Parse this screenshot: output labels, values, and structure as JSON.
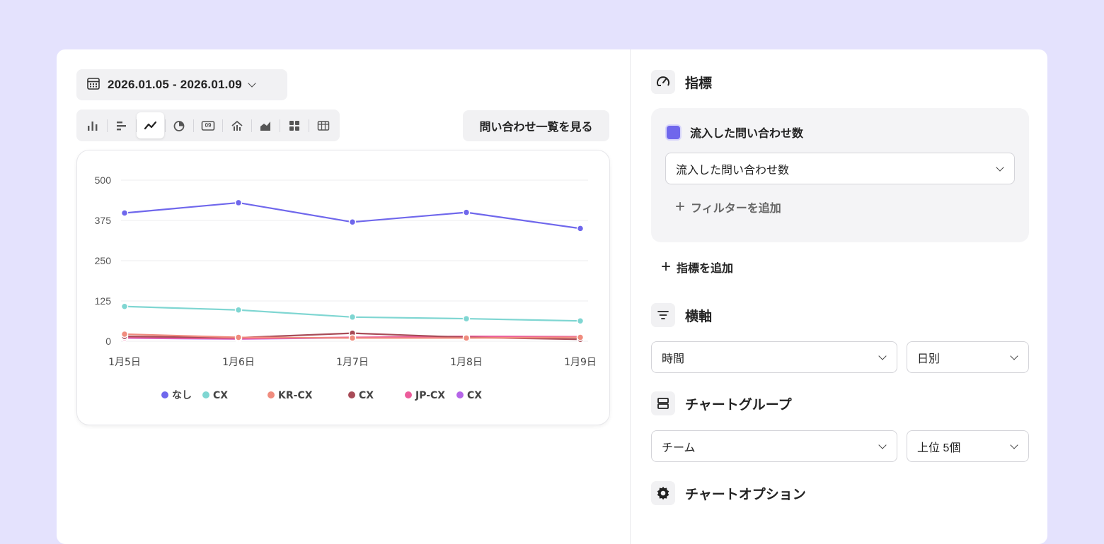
{
  "date_range": {
    "label": "2026.01.05 - 2026.01.09"
  },
  "chart_type_toolbar": {
    "items": [
      "bar-chart",
      "horizontal-bar-chart",
      "line-chart",
      "pie-chart",
      "number",
      "funnel",
      "area-chart",
      "grid",
      "table"
    ],
    "active": "line-chart",
    "number_icon_text": "09"
  },
  "list_button": {
    "label": "問い合わせ一覧を見る"
  },
  "chart_data": {
    "type": "line",
    "x": [
      "1月5日",
      "1月6日",
      "1月7日",
      "1月8日",
      "1月9日"
    ],
    "ylim": [
      0,
      500
    ],
    "yticks": [
      "500",
      "375",
      "250",
      "125",
      "0"
    ],
    "grid": true,
    "legend_position": "bottom",
    "series": [
      {
        "name": "なし",
        "color": "#6f67ec",
        "values": [
          398,
          430,
          370,
          400,
          350
        ]
      },
      {
        "name": "CX",
        "color": "#7fd6d2",
        "values": [
          108,
          97,
          75,
          70,
          63
        ]
      },
      {
        "name": "KR-CX",
        "color": "#f08c7e",
        "values": [
          22,
          12,
          10,
          10,
          12
        ]
      },
      {
        "name": "CX",
        "color": "#a84b57",
        "values": [
          15,
          11,
          25,
          12,
          6
        ]
      },
      {
        "name": "JP-CX",
        "color": "#ec5c9b",
        "values": [
          11,
          8,
          12,
          15,
          14
        ]
      },
      {
        "name": "CX",
        "color": "#b565e8",
        "values": [
          10,
          7,
          11,
          12,
          13
        ]
      }
    ]
  },
  "metrics_section": {
    "title": "指標",
    "metric": {
      "name": "流入した問い合わせ数",
      "selected": "流入した問い合わせ数",
      "add_filter": "フィルターを追加"
    },
    "add_metric": "指標を追加"
  },
  "x_axis_section": {
    "title": "横軸",
    "dimension": "時間",
    "granularity": "日別"
  },
  "group_section": {
    "title": "チャートグループ",
    "dimension": "チーム",
    "limit": "上位 5個"
  },
  "options_section": {
    "title": "チャートオプション"
  }
}
